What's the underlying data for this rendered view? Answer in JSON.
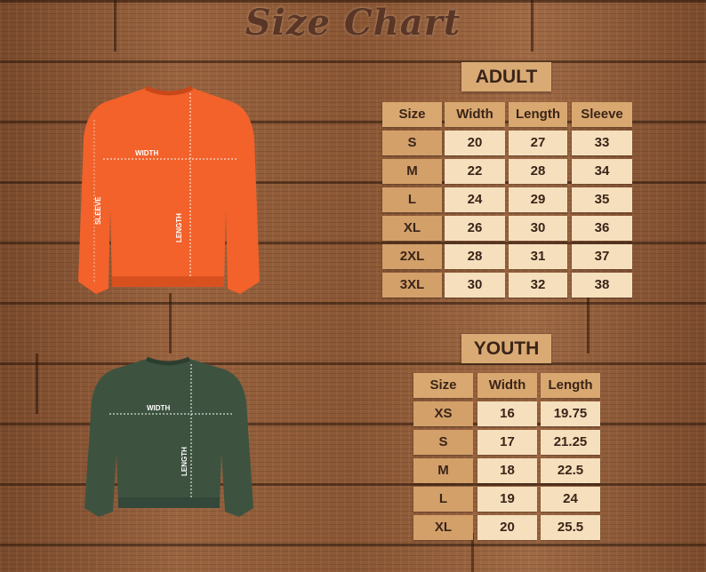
{
  "title": "Size Chart",
  "adult": {
    "label": "ADULT",
    "headers": [
      "Size",
      "Width",
      "Length",
      "Sleeve"
    ],
    "rows": [
      [
        "S",
        "20",
        "27",
        "33"
      ],
      [
        "M",
        "22",
        "28",
        "34"
      ],
      [
        "L",
        "24",
        "29",
        "35"
      ],
      [
        "XL",
        "26",
        "30",
        "36"
      ],
      [
        "2XL",
        "28",
        "31",
        "37"
      ],
      [
        "3XL",
        "30",
        "32",
        "38"
      ]
    ]
  },
  "youth": {
    "label": "YOUTH",
    "headers": [
      "Size",
      "Width",
      "Length"
    ],
    "rows": [
      [
        "XS",
        "16",
        "19.75"
      ],
      [
        "S",
        "17",
        "21.25"
      ],
      [
        "M",
        "18",
        "22.5"
      ],
      [
        "L",
        "19",
        "24"
      ],
      [
        "XL",
        "20",
        "25.5"
      ]
    ]
  },
  "adult_shirt": {
    "color": "#f2622a",
    "labels": {
      "width": "WIDTH",
      "sleeve": "SLEEVE",
      "length": "LENGTH"
    }
  },
  "youth_shirt": {
    "color": "#3d5340",
    "labels": {
      "width": "WIDTH",
      "length": "LENGTH"
    }
  }
}
